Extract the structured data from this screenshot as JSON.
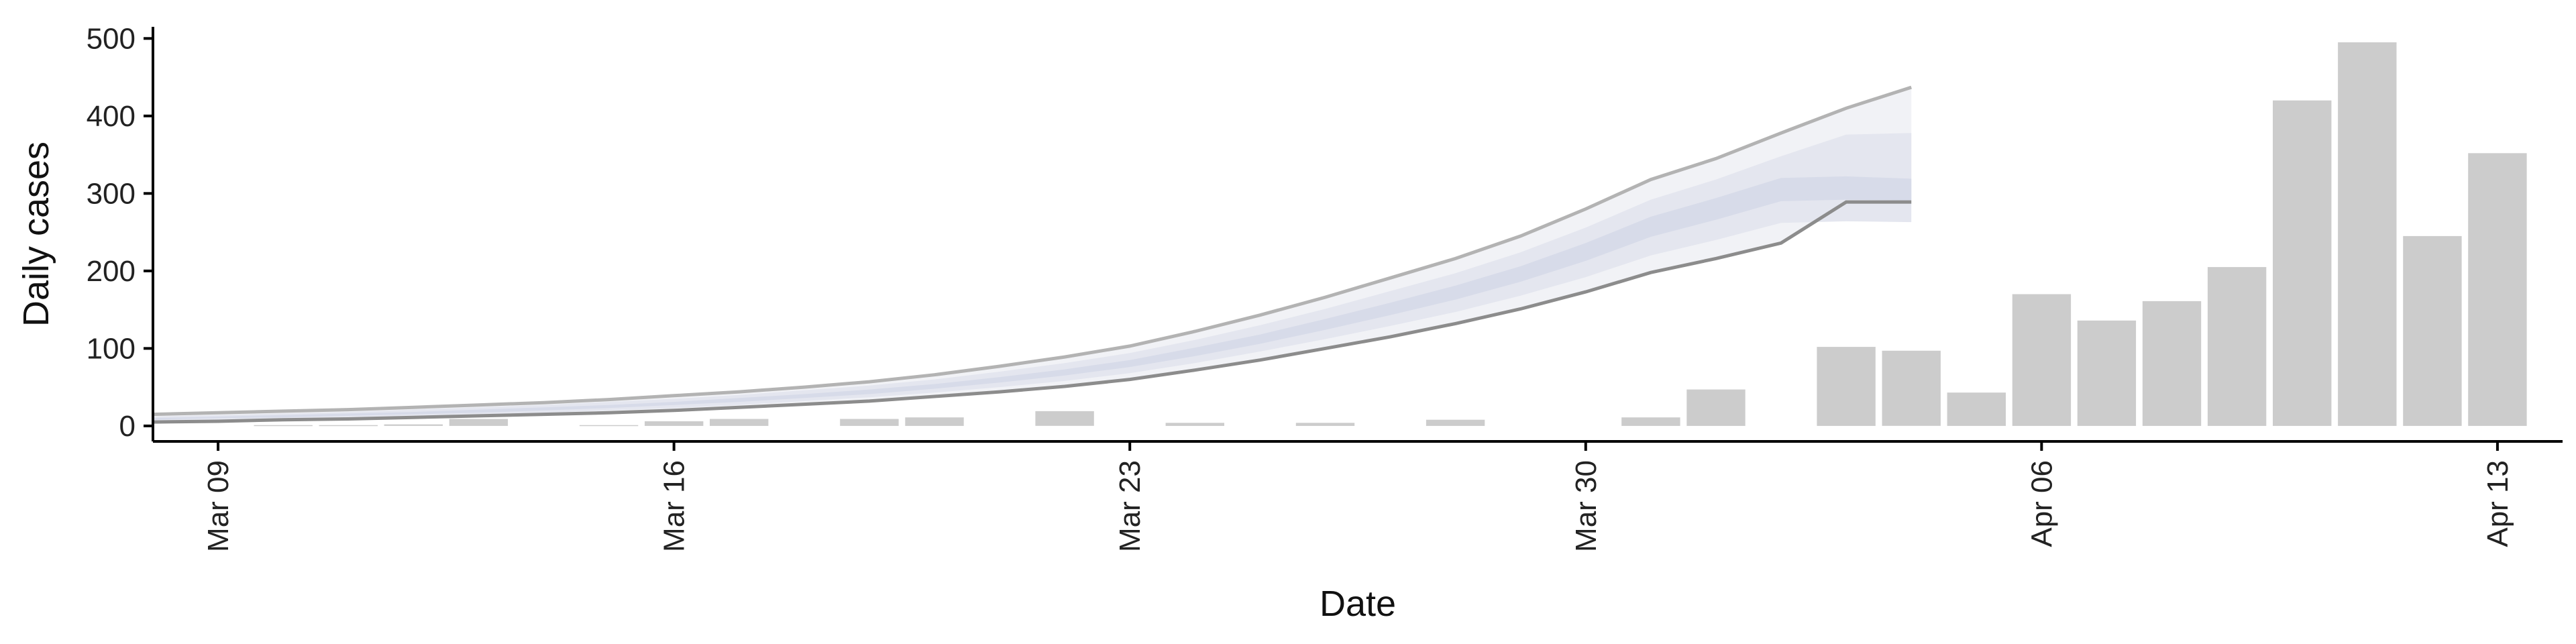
{
  "chart_data": {
    "type": "bar",
    "xlabel": "Date",
    "ylabel": "Daily cases",
    "xlim": [
      "2020-03-08",
      "2020-04-14"
    ],
    "ylim": [
      -20,
      515
    ],
    "xticks": [
      "2020-03-09",
      "2020-03-16",
      "2020-03-23",
      "2020-03-30",
      "2020-04-06",
      "2020-04-13"
    ],
    "xtick_labels": [
      "Mar 09",
      "Mar 16",
      "Mar 23",
      "Mar 30",
      "Apr 06",
      "Apr 13"
    ],
    "yticks": [
      0,
      100,
      200,
      300,
      400,
      500
    ],
    "grid": false,
    "legend": "none",
    "colors": {
      "bars": "#cccccc",
      "band_outer": "#f1f2f6",
      "band_mid": "#e4e6ef",
      "band_inner": "#d7dbe9",
      "bound_upper": "#b3b3b3",
      "bound_lower": "#8c8c8c",
      "axis": "#000000"
    },
    "bars": [
      {
        "x": "2020-03-10",
        "y": 1
      },
      {
        "x": "2020-03-11",
        "y": 1
      },
      {
        "x": "2020-03-12",
        "y": 2
      },
      {
        "x": "2020-03-13",
        "y": 9
      },
      {
        "x": "2020-03-15",
        "y": 1
      },
      {
        "x": "2020-03-16",
        "y": 6
      },
      {
        "x": "2020-03-17",
        "y": 9
      },
      {
        "x": "2020-03-19",
        "y": 9
      },
      {
        "x": "2020-03-20",
        "y": 11
      },
      {
        "x": "2020-03-22",
        "y": 19
      },
      {
        "x": "2020-03-24",
        "y": 4
      },
      {
        "x": "2020-03-26",
        "y": 4
      },
      {
        "x": "2020-03-28",
        "y": 8
      },
      {
        "x": "2020-03-31",
        "y": 11
      },
      {
        "x": "2020-04-01",
        "y": 47
      },
      {
        "x": "2020-04-03",
        "y": 102
      },
      {
        "x": "2020-04-04",
        "y": 97
      },
      {
        "x": "2020-04-05",
        "y": 43
      },
      {
        "x": "2020-04-06",
        "y": 170
      },
      {
        "x": "2020-04-07",
        "y": 136
      },
      {
        "x": "2020-04-08",
        "y": 161
      },
      {
        "x": "2020-04-09",
        "y": 205
      },
      {
        "x": "2020-04-10",
        "y": 420
      },
      {
        "x": "2020-04-11",
        "y": 495
      },
      {
        "x": "2020-04-12",
        "y": 245
      },
      {
        "x": "2020-04-13",
        "y": 352
      }
    ],
    "forecast": {
      "x": [
        "2020-03-08",
        "2020-03-09",
        "2020-03-10",
        "2020-03-11",
        "2020-03-12",
        "2020-03-13",
        "2020-03-14",
        "2020-03-15",
        "2020-03-16",
        "2020-03-17",
        "2020-03-18",
        "2020-03-19",
        "2020-03-20",
        "2020-03-21",
        "2020-03-22",
        "2020-03-23",
        "2020-03-24",
        "2020-03-25",
        "2020-03-26",
        "2020-03-27",
        "2020-03-28",
        "2020-03-29",
        "2020-03-30",
        "2020-03-31",
        "2020-04-01",
        "2020-04-02",
        "2020-04-03",
        "2020-04-04"
      ],
      "upper": [
        15,
        17,
        19,
        21,
        24,
        27,
        30,
        34,
        39,
        44,
        50,
        57,
        66,
        77,
        89,
        103,
        122,
        143,
        166,
        191,
        216,
        245,
        280,
        318,
        345,
        378,
        410,
        437
      ],
      "upper_mid": [
        12,
        14,
        16,
        18,
        21,
        24,
        27,
        31,
        35,
        40,
        46,
        52,
        60,
        70,
        81,
        94,
        111,
        130,
        151,
        174,
        197,
        224,
        256,
        292,
        318,
        348,
        376,
        378
      ],
      "upper_inner": [
        10,
        12,
        14,
        16,
        18,
        21,
        24,
        27,
        31,
        36,
        41,
        47,
        54,
        63,
        73,
        85,
        101,
        118,
        138,
        159,
        181,
        206,
        236,
        270,
        294,
        320,
        322,
        319
      ],
      "lower_inner": [
        8,
        10,
        11,
        13,
        15,
        17,
        20,
        23,
        27,
        31,
        36,
        41,
        48,
        56,
        65,
        76,
        90,
        106,
        124,
        143,
        163,
        186,
        213,
        244,
        266,
        290,
        292,
        291
      ],
      "lower_mid": [
        6,
        8,
        9,
        11,
        13,
        15,
        17,
        20,
        23,
        27,
        32,
        37,
        43,
        50,
        58,
        68,
        81,
        96,
        112,
        129,
        147,
        168,
        192,
        220,
        240,
        262,
        264,
        263
      ],
      "lower": [
        5,
        6,
        8,
        9,
        11,
        13,
        15,
        17,
        20,
        24,
        28,
        32,
        38,
        44,
        51,
        60,
        72,
        85,
        100,
        115,
        132,
        151,
        173,
        198,
        216,
        236,
        289,
        289
      ]
    }
  }
}
